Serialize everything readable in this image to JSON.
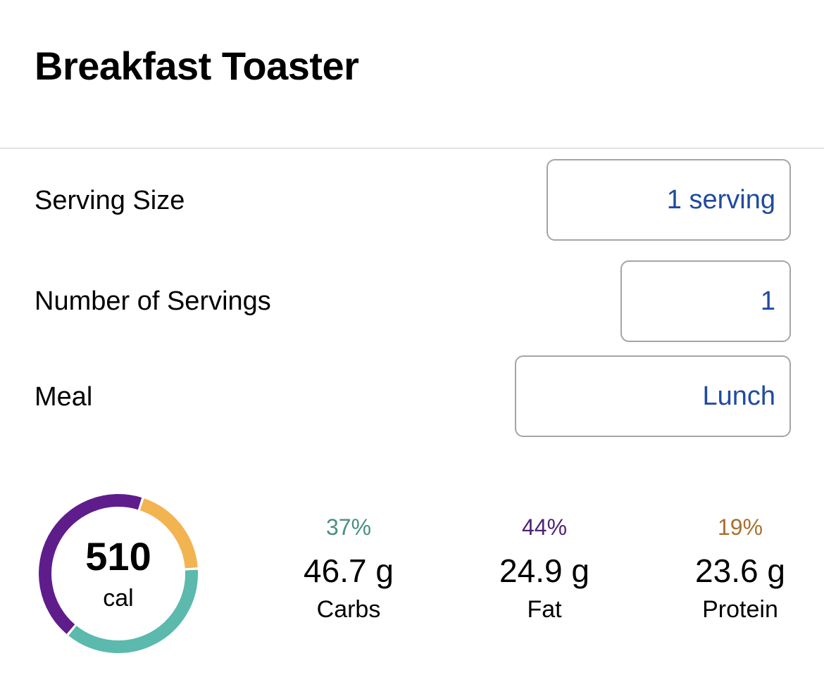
{
  "header": {
    "title": "Breakfast Toaster"
  },
  "form": {
    "serving_size": {
      "label": "Serving Size",
      "value": "1 serving"
    },
    "number_of_servings": {
      "label": "Number of Servings",
      "value": "1"
    },
    "meal": {
      "label": "Meal",
      "value": "Lunch"
    }
  },
  "summary": {
    "calories": "510",
    "calories_unit": "cal",
    "macros": [
      {
        "percent": "37%",
        "amount": "46.7 g",
        "name": "Carbs",
        "color": "#4a8f85",
        "ring_color": "#5bb9ad"
      },
      {
        "percent": "44%",
        "amount": "24.9 g",
        "name": "Fat",
        "color": "#4e2472",
        "ring_color": "#5f1d8c"
      },
      {
        "percent": "19%",
        "amount": "23.6 g",
        "name": "Protein",
        "color": "#a8702f",
        "ring_color": "#f2b451"
      }
    ],
    "ring_fractions": {
      "carbs": 0.37,
      "fat": 0.44,
      "protein": 0.19
    }
  }
}
